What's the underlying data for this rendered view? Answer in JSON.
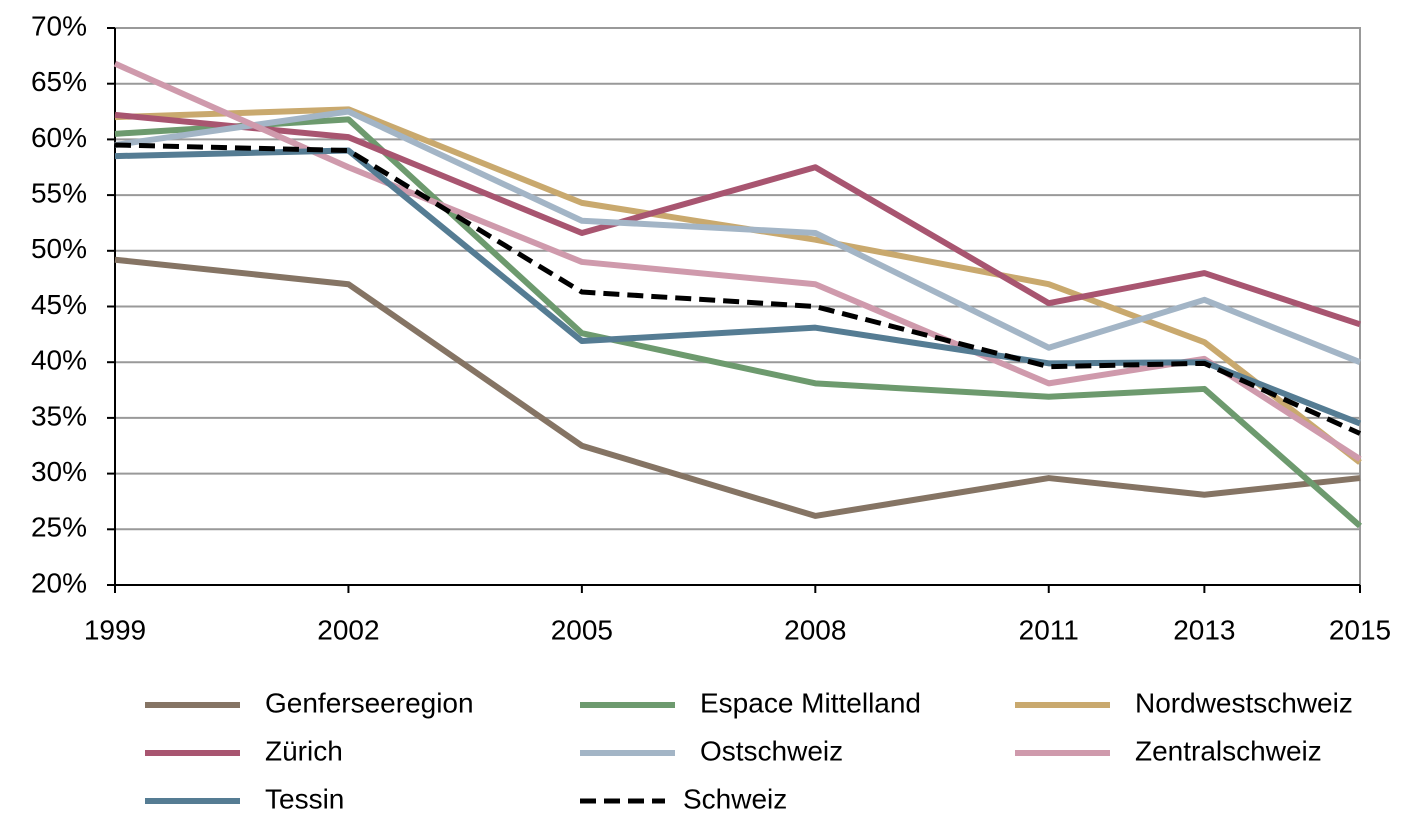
{
  "chart_data": {
    "type": "line",
    "x": [
      1999,
      2002,
      2005,
      2008,
      2011,
      2013,
      2015
    ],
    "xlim": [
      1999,
      2015
    ],
    "xticks": [
      1999,
      2002,
      2005,
      2008,
      2011,
      2013,
      2015
    ],
    "ylim": [
      20,
      70
    ],
    "yticks": [
      {
        "value": 20,
        "label": "20%"
      },
      {
        "value": 25,
        "label": "25%"
      },
      {
        "value": 30,
        "label": "30%"
      },
      {
        "value": 35,
        "label": "35%"
      },
      {
        "value": 40,
        "label": "40%"
      },
      {
        "value": 45,
        "label": "45%"
      },
      {
        "value": 50,
        "label": "50%"
      },
      {
        "value": 55,
        "label": "55%"
      },
      {
        "value": 60,
        "label": "60%"
      },
      {
        "value": 65,
        "label": "65%"
      },
      {
        "value": 70,
        "label": "70%"
      }
    ],
    "grid": true,
    "legend": "bottom",
    "series": [
      {
        "name": "Genferseeregion",
        "color": "#857464",
        "values": [
          49.2,
          47.0,
          32.5,
          26.2,
          29.6,
          28.1,
          29.6
        ]
      },
      {
        "name": "Espace Mittelland",
        "color": "#6d9a6e",
        "values": [
          60.5,
          61.8,
          42.6,
          38.1,
          36.9,
          37.6,
          25.3
        ]
      },
      {
        "name": "Nordwestschweiz",
        "color": "#c9a96e",
        "values": [
          62.0,
          62.7,
          54.3,
          51.0,
          47.0,
          41.8,
          31.0
        ]
      },
      {
        "name": "Zürich",
        "color": "#a85570",
        "values": [
          62.2,
          60.2,
          51.6,
          57.5,
          45.3,
          48.0,
          43.4
        ]
      },
      {
        "name": "Ostschweiz",
        "color": "#a3b5c6",
        "values": [
          59.5,
          62.5,
          52.7,
          51.6,
          41.3,
          45.6,
          40.0
        ]
      },
      {
        "name": "Zentralschweiz",
        "color": "#cf9aac",
        "values": [
          66.8,
          57.5,
          49.0,
          47.0,
          38.1,
          40.3,
          31.3
        ]
      },
      {
        "name": "Tessin",
        "color": "#557c93",
        "values": [
          58.5,
          59.0,
          41.9,
          43.1,
          39.9,
          40.0,
          34.5
        ]
      },
      {
        "name": "Schweiz",
        "color": "#000000",
        "dashed": true,
        "values": [
          59.5,
          59.0,
          46.3,
          45.0,
          39.6,
          39.9,
          33.6
        ]
      }
    ]
  }
}
